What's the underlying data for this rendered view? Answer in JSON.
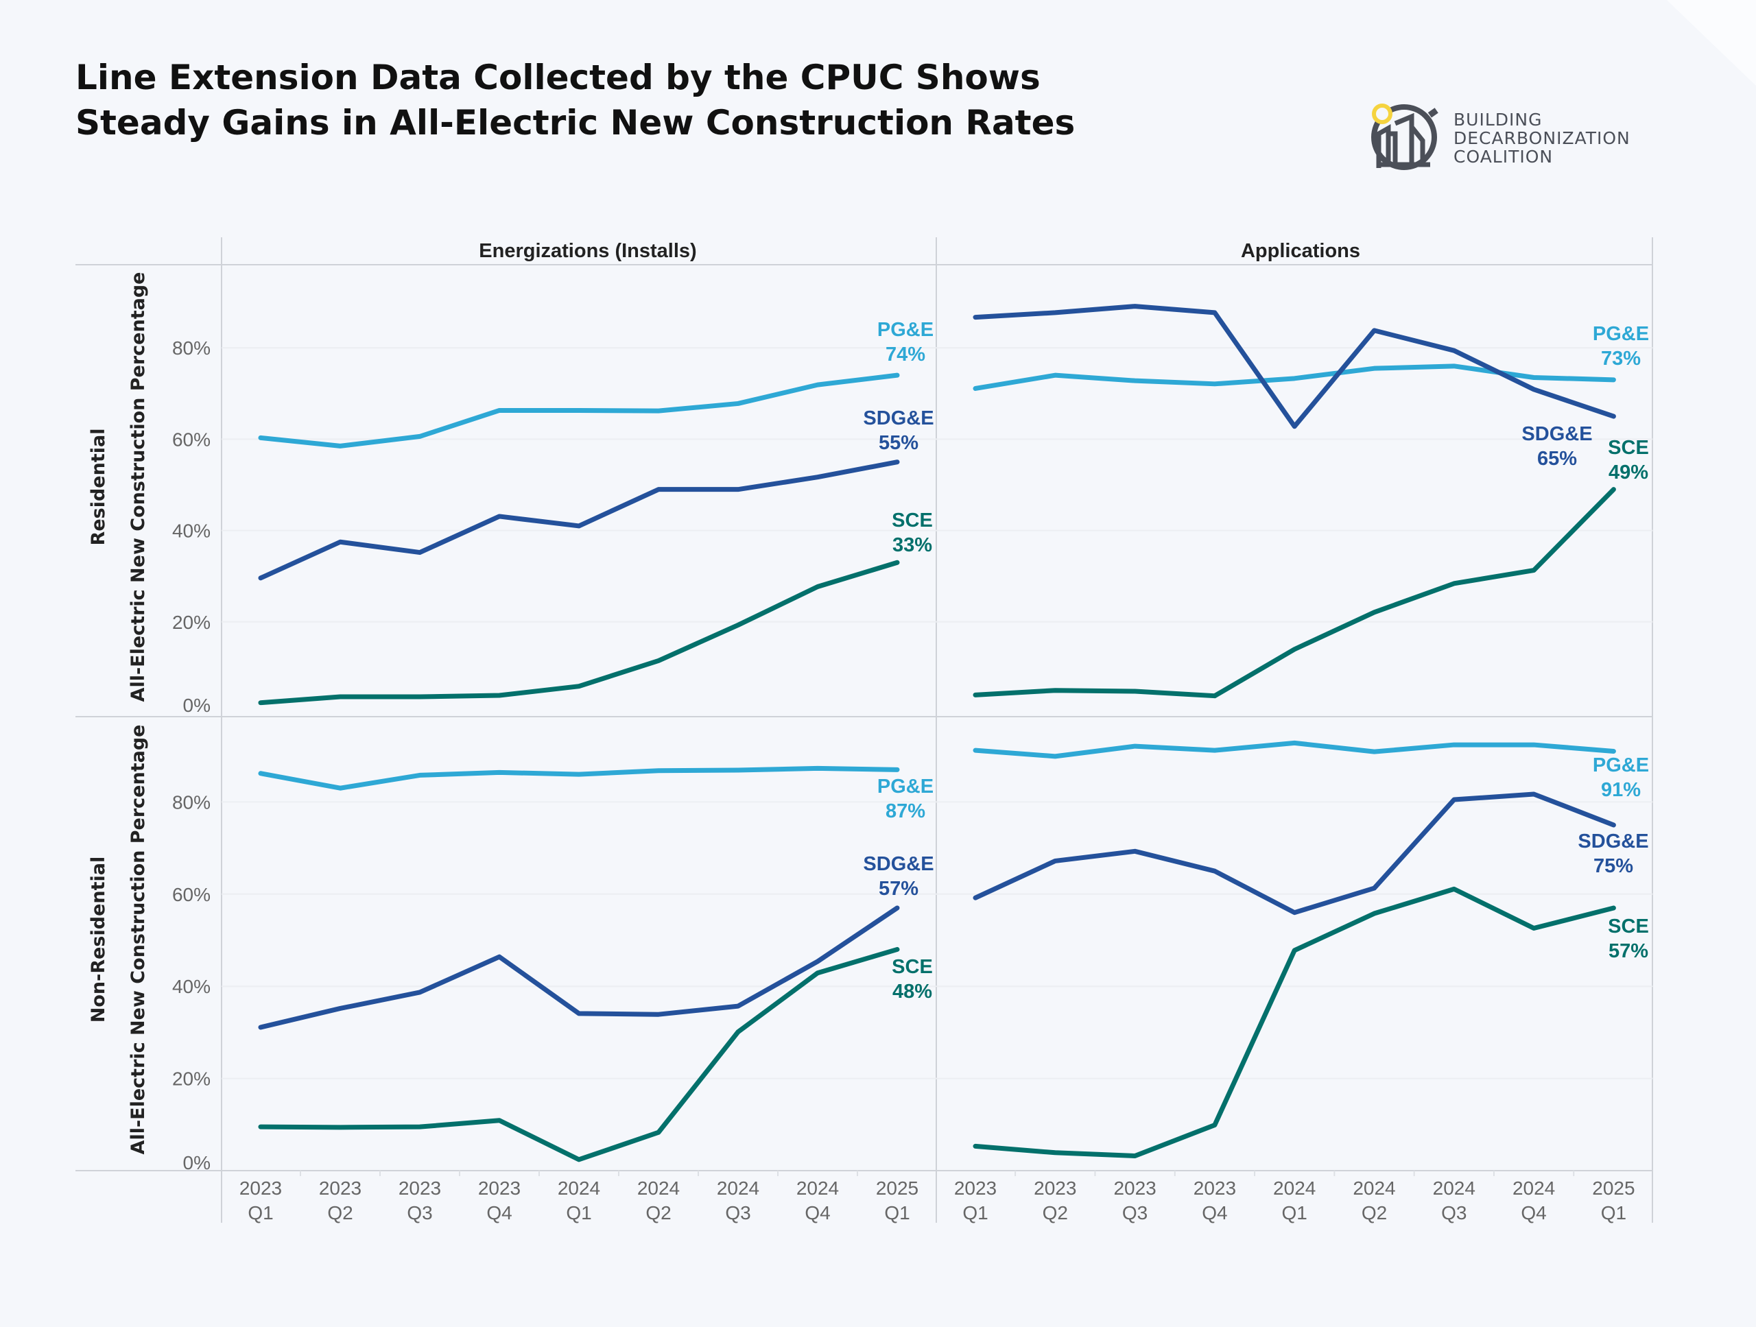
{
  "title": {
    "line1": "Line Extension Data Collected by the CPUC Shows",
    "line2": "Steady Gains in All-Electric New Construction Rates"
  },
  "logo": {
    "line1": "BUILDING",
    "line2": "DECARBONIZATION",
    "line3": "COALITION",
    "colors": {
      "ring": "#4B4F58",
      "sun": "#F5D33F"
    }
  },
  "facets": {
    "columns": [
      "Energizations (Installs)",
      "Applications"
    ],
    "rows": [
      "Residential",
      "Non-Residential"
    ],
    "ylabel": "All-Electric New Construction Percentage"
  },
  "series_colors": {
    "PG&E": "#2EA8D5",
    "SDG&E": "#24519B",
    "SCE": "#03706B"
  },
  "chart_data": [
    {
      "type": "line",
      "column": "Energizations (Installs)",
      "row": "Residential",
      "categories": [
        "2023 Q1",
        "2023 Q2",
        "2023 Q3",
        "2023 Q4",
        "2024 Q1",
        "2024 Q2",
        "2024 Q3",
        "2024 Q4",
        "2025 Q1"
      ],
      "ylabel": "All-Electric New Construction Percentage",
      "yticks": [
        "0%",
        "20%",
        "40%",
        "60%",
        "80%"
      ],
      "ylim": [
        0,
        100
      ],
      "grid": true,
      "series": [
        {
          "name": "PG&E",
          "values": [
            60.3,
            58.5,
            60.6,
            66.3,
            66.3,
            66.2,
            67.8,
            71.9,
            74
          ],
          "end_label": "74%"
        },
        {
          "name": "SDG&E",
          "values": [
            29.6,
            37.5,
            35.2,
            43.1,
            41.0,
            49.0,
            49.0,
            51.7,
            55
          ],
          "end_label": "55%"
        },
        {
          "name": "SCE",
          "values": [
            2.3,
            3.6,
            3.6,
            3.9,
            5.9,
            11.5,
            19.3,
            27.7,
            33
          ],
          "end_label": "33%"
        }
      ]
    },
    {
      "type": "line",
      "column": "Applications",
      "row": "Residential",
      "categories": [
        "2023 Q1",
        "2023 Q2",
        "2023 Q3",
        "2023 Q4",
        "2024 Q1",
        "2024 Q2",
        "2024 Q3",
        "2024 Q4",
        "2025 Q1"
      ],
      "ylabel": "All-Electric New Construction Percentage",
      "yticks": [
        "0%",
        "20%",
        "40%",
        "60%",
        "80%"
      ],
      "ylim": [
        0,
        100
      ],
      "grid": true,
      "series": [
        {
          "name": "PG&E",
          "values": [
            71.1,
            74.0,
            72.8,
            72.1,
            73.3,
            75.5,
            76.0,
            73.5,
            73
          ],
          "end_label": "73%"
        },
        {
          "name": "SDG&E",
          "values": [
            86.7,
            87.7,
            89.1,
            87.7,
            62.8,
            83.8,
            79.4,
            70.9,
            65
          ],
          "end_label": "65%"
        },
        {
          "name": "SCE",
          "values": [
            4.0,
            5.0,
            4.8,
            3.8,
            14.0,
            22.1,
            28.4,
            31.3,
            49
          ],
          "end_label": "49%"
        }
      ]
    },
    {
      "type": "line",
      "column": "Energizations (Installs)",
      "row": "Non-Residential",
      "categories": [
        "2023 Q1",
        "2023 Q2",
        "2023 Q3",
        "2023 Q4",
        "2024 Q1",
        "2024 Q2",
        "2024 Q3",
        "2024 Q4",
        "2025 Q1"
      ],
      "ylabel": "All-Electric New Construction Percentage",
      "yticks": [
        "0%",
        "20%",
        "40%",
        "60%",
        "80%"
      ],
      "ylim": [
        0,
        100
      ],
      "grid": true,
      "series": [
        {
          "name": "PG&E",
          "values": [
            86.2,
            83.0,
            85.8,
            86.4,
            86.0,
            86.8,
            86.9,
            87.3,
            87
          ],
          "end_label": "87%"
        },
        {
          "name": "SDG&E",
          "values": [
            31.1,
            35.2,
            38.7,
            46.4,
            34.1,
            33.9,
            35.7,
            45.4,
            57
          ],
          "end_label": "57%"
        },
        {
          "name": "SCE",
          "values": [
            9.5,
            9.4,
            9.5,
            10.9,
            2.4,
            8.3,
            30.1,
            42.9,
            48
          ],
          "end_label": "48%"
        }
      ]
    },
    {
      "type": "line",
      "column": "Applications",
      "row": "Non-Residential",
      "categories": [
        "2023 Q1",
        "2023 Q2",
        "2023 Q3",
        "2023 Q4",
        "2024 Q1",
        "2024 Q2",
        "2024 Q3",
        "2024 Q4",
        "2025 Q1"
      ],
      "ylabel": "All-Electric New Construction Percentage",
      "yticks": [
        "0%",
        "20%",
        "40%",
        "60%",
        "80%"
      ],
      "ylim": [
        0,
        100
      ],
      "grid": true,
      "series": [
        {
          "name": "PG&E",
          "values": [
            91.2,
            89.9,
            92.1,
            91.2,
            92.8,
            90.9,
            92.4,
            92.4,
            91
          ],
          "end_label": "91%"
        },
        {
          "name": "SDG&E",
          "values": [
            59.2,
            67.2,
            69.3,
            65.0,
            56.0,
            61.3,
            80.5,
            81.7,
            75
          ],
          "end_label": "75%"
        },
        {
          "name": "SCE",
          "values": [
            5.3,
            3.9,
            3.2,
            9.9,
            47.8,
            55.8,
            61.1,
            52.6,
            57
          ],
          "end_label": "57%"
        }
      ]
    }
  ]
}
